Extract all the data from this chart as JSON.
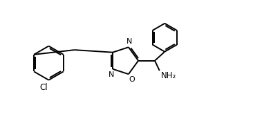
{
  "bg_color": "#ffffff",
  "line_color": "#000000",
  "text_color": "#000000",
  "line_width": 1.4,
  "figsize": [
    3.66,
    1.72
  ],
  "dpi": 100,
  "label_Cl": "Cl",
  "label_N1": "N",
  "label_N2": "N",
  "label_O": "O",
  "label_NH2": "NH₂"
}
